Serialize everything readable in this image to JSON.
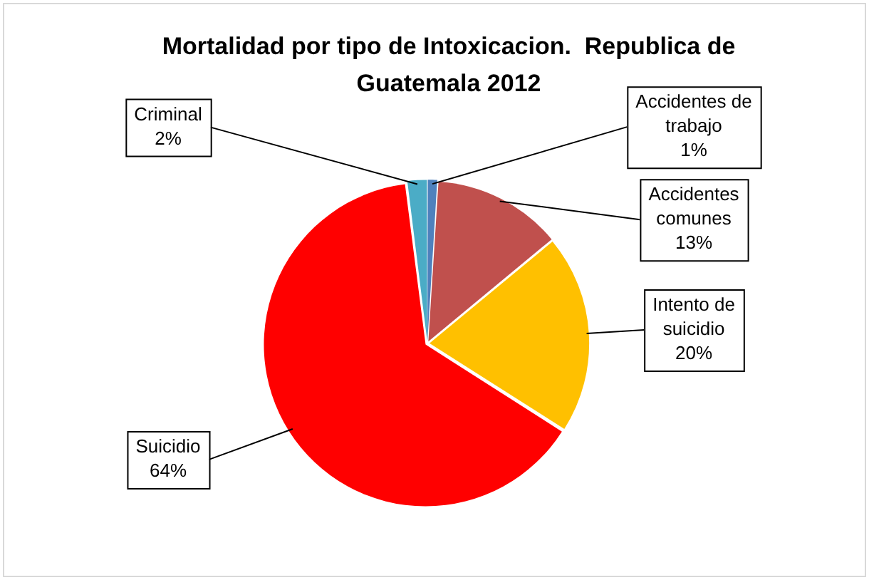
{
  "chart_data": {
    "type": "pie",
    "title": "Mortalidad por tipo de Intoxicacion.  Republica de Guatemala 2012",
    "categories": [
      "Accidentes de trabajo",
      "Accidentes comunes",
      "Intento de suicidio",
      "Suicidio",
      "Criminal"
    ],
    "values": [
      1,
      13,
      20,
      64,
      2
    ],
    "value_labels": [
      "1%",
      "13%",
      "20%",
      "64%",
      "2%"
    ],
    "colors": [
      "#4f81bd",
      "#c0504d",
      "#ffc000",
      "#ff0000",
      "#4bacc6"
    ],
    "legend": false
  }
}
